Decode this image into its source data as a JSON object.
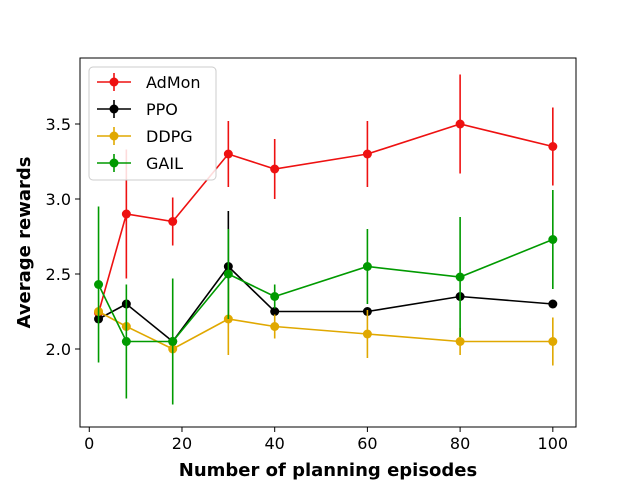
{
  "chart_data": {
    "type": "line",
    "title": "",
    "xlabel": "Number of planning episodes",
    "ylabel": "Average rewards",
    "xlim": [
      -2,
      105
    ],
    "ylim": [
      1.48,
      3.94
    ],
    "xticks": [
      0,
      20,
      40,
      60,
      80,
      100
    ],
    "xtick_labels": [
      "0",
      "20",
      "40",
      "60",
      "80",
      "100"
    ],
    "yticks": [
      2.0,
      2.5,
      3.0,
      3.5
    ],
    "ytick_labels": [
      "2.0",
      "2.5",
      "3.0",
      "3.5"
    ],
    "grid": false,
    "legend_position": "upper-left",
    "error_bars": true,
    "series": [
      {
        "name": "AdMon",
        "color": "#ee1111",
        "x": [
          2,
          8,
          18,
          30,
          40,
          60,
          80,
          100
        ],
        "y": [
          2.24,
          2.9,
          2.85,
          3.3,
          3.2,
          3.3,
          3.5,
          3.35
        ],
        "yerr": [
          0.0,
          0.43,
          0.16,
          0.22,
          0.2,
          0.22,
          0.33,
          0.26
        ]
      },
      {
        "name": "PPO",
        "color": "#000000",
        "x": [
          2,
          8,
          18,
          30,
          40,
          60,
          80,
          100
        ],
        "y": [
          2.2,
          2.3,
          2.05,
          2.55,
          2.25,
          2.25,
          2.35,
          2.3
        ],
        "yerr": [
          0.0,
          0.0,
          0.0,
          0.37,
          0.0,
          0.0,
          0.0,
          0.0
        ]
      },
      {
        "name": "DDPG",
        "color": "#e0a800",
        "x": [
          2,
          8,
          18,
          30,
          40,
          60,
          80,
          100
        ],
        "y": [
          2.25,
          2.15,
          2.0,
          2.2,
          2.15,
          2.1,
          2.05,
          2.05
        ],
        "yerr": [
          0.0,
          0.0,
          0.0,
          0.24,
          0.08,
          0.16,
          0.09,
          0.16
        ]
      },
      {
        "name": "GAIL",
        "color": "#009a00",
        "x": [
          2,
          8,
          18,
          30,
          40,
          60,
          80,
          100
        ],
        "y": [
          2.43,
          2.05,
          2.05,
          2.5,
          2.35,
          2.55,
          2.48,
          2.73
        ],
        "yerr": [
          0.52,
          0.38,
          0.42,
          0.3,
          0.08,
          0.25,
          0.4,
          0.33
        ]
      }
    ]
  }
}
